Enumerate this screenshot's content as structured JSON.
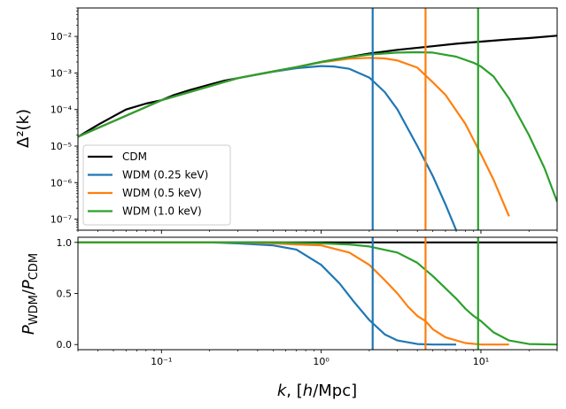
{
  "chart_data": [
    {
      "type": "line",
      "panel": "top",
      "xscale": "log",
      "yscale": "log",
      "xlim": [
        0.03,
        30
      ],
      "ylim": [
        5e-08,
        0.06
      ],
      "xlabel": "",
      "ylabel": "Δ²(k)",
      "ytick_labels": [
        "10⁻⁷",
        "10⁻⁶",
        "10⁻⁵",
        "10⁻⁴",
        "10⁻³",
        "10⁻²"
      ],
      "legend": "lower-left",
      "grid": false,
      "series": [
        {
          "name": "CDM",
          "color": "#000000",
          "x": [
            0.03,
            0.04,
            0.05,
            0.06,
            0.08,
            0.1,
            0.12,
            0.15,
            0.2,
            0.25,
            0.3,
            0.4,
            0.5,
            0.7,
            1,
            1.5,
            2,
            3,
            5,
            7,
            10,
            15,
            20,
            30
          ],
          "y": [
            1.8e-05,
            3.8e-05,
            6.5e-05,
            0.0001,
            0.000145,
            0.00018,
            0.00025,
            0.00034,
            0.00048,
            0.00062,
            0.00072,
            0.00092,
            0.0011,
            0.00145,
            0.002,
            0.00275,
            0.0034,
            0.0043,
            0.0054,
            0.0063,
            0.0072,
            0.0083,
            0.009,
            0.0105
          ]
        },
        {
          "name": "WDM (0.25 keV)",
          "color": "#1f77b4",
          "x": [
            0.03,
            0.1,
            0.3,
            0.5,
            0.7,
            1,
            1.2,
            1.5,
            2,
            2.5,
            3,
            4,
            5,
            6,
            7
          ],
          "y": [
            1.8e-05,
            0.00018,
            0.00072,
            0.00108,
            0.00135,
            0.00155,
            0.0015,
            0.0013,
            0.00075,
            0.0003,
            0.0001,
            1e-05,
            1.5e-06,
            2.5e-07,
            5e-08
          ]
        },
        {
          "name": "WDM (0.5 keV)",
          "color": "#ff7f0e",
          "x": [
            0.03,
            0.1,
            0.3,
            0.5,
            0.7,
            1,
            1.5,
            2,
            2.5,
            3,
            4,
            5,
            6,
            8,
            10,
            12,
            15
          ],
          "y": [
            1.8e-05,
            0.00018,
            0.00072,
            0.0011,
            0.00145,
            0.00195,
            0.00245,
            0.0026,
            0.0025,
            0.0022,
            0.0014,
            0.00055,
            0.00025,
            4e-05,
            6e-06,
            1.2e-06,
            1.2e-07
          ]
        },
        {
          "name": "WDM (1.0 keV)",
          "color": "#2ca02c",
          "x": [
            0.03,
            0.1,
            0.3,
            0.5,
            0.7,
            1,
            1.5,
            2,
            3,
            4,
            5,
            7,
            9,
            10,
            12,
            15,
            20,
            25,
            30
          ],
          "y": [
            1.8e-05,
            0.00018,
            0.00072,
            0.0011,
            0.00145,
            0.002,
            0.0027,
            0.0032,
            0.0036,
            0.0037,
            0.0036,
            0.0028,
            0.0019,
            0.0015,
            0.0008,
            0.0002,
            2e-05,
            2.5e-06,
            3e-07
          ]
        }
      ],
      "vlines": [
        {
          "x": 2.1,
          "color": "#1f77b4"
        },
        {
          "x": 4.5,
          "color": "#ff7f0e"
        },
        {
          "x": 9.6,
          "color": "#2ca02c"
        }
      ]
    },
    {
      "type": "line",
      "panel": "bottom",
      "xscale": "log",
      "yscale": "linear",
      "xlim": [
        0.03,
        30
      ],
      "ylim": [
        -0.05,
        1.05
      ],
      "xlabel": "k, [h/Mpc]",
      "ylabel": "P_WDM/P_CDM",
      "xtick_labels": [
        "10⁻¹",
        "10⁰",
        "10¹"
      ],
      "ytick_labels": [
        "0.0",
        "0.5",
        "1.0"
      ],
      "grid": false,
      "series": [
        {
          "name": "CDM",
          "color": "#000000",
          "x": [
            0.03,
            30
          ],
          "y": [
            1.0,
            1.0
          ]
        },
        {
          "name": "WDM (0.25 keV)",
          "color": "#1f77b4",
          "x": [
            0.03,
            0.1,
            0.2,
            0.3,
            0.5,
            0.7,
            1,
            1.3,
            1.6,
            2,
            2.5,
            3,
            4,
            5,
            7
          ],
          "y": [
            1.0,
            1.0,
            1.0,
            0.99,
            0.97,
            0.93,
            0.78,
            0.6,
            0.42,
            0.24,
            0.1,
            0.04,
            0.005,
            0.0,
            0.0
          ]
        },
        {
          "name": "WDM (0.5 keV)",
          "color": "#ff7f0e",
          "x": [
            0.03,
            0.3,
            0.5,
            0.7,
            1,
            1.5,
            2,
            2.5,
            3,
            3.5,
            4,
            4.5,
            5,
            6,
            8,
            10,
            15
          ],
          "y": [
            1.0,
            1.0,
            0.99,
            0.98,
            0.97,
            0.9,
            0.78,
            0.63,
            0.5,
            0.37,
            0.28,
            0.23,
            0.15,
            0.07,
            0.015,
            0.0,
            0.0
          ]
        },
        {
          "name": "WDM (1.0 keV)",
          "color": "#2ca02c",
          "x": [
            0.03,
            0.5,
            1,
            1.5,
            2,
            3,
            4,
            5,
            6,
            7,
            8,
            9,
            10,
            12,
            15,
            20,
            30
          ],
          "y": [
            1.0,
            1.0,
            0.99,
            0.98,
            0.96,
            0.9,
            0.8,
            0.67,
            0.55,
            0.45,
            0.35,
            0.28,
            0.23,
            0.12,
            0.04,
            0.005,
            0.0
          ]
        }
      ],
      "vlines": [
        {
          "x": 2.1,
          "color": "#1f77b4"
        },
        {
          "x": 4.5,
          "color": "#ff7f0e"
        },
        {
          "x": 9.6,
          "color": "#2ca02c"
        }
      ]
    }
  ]
}
